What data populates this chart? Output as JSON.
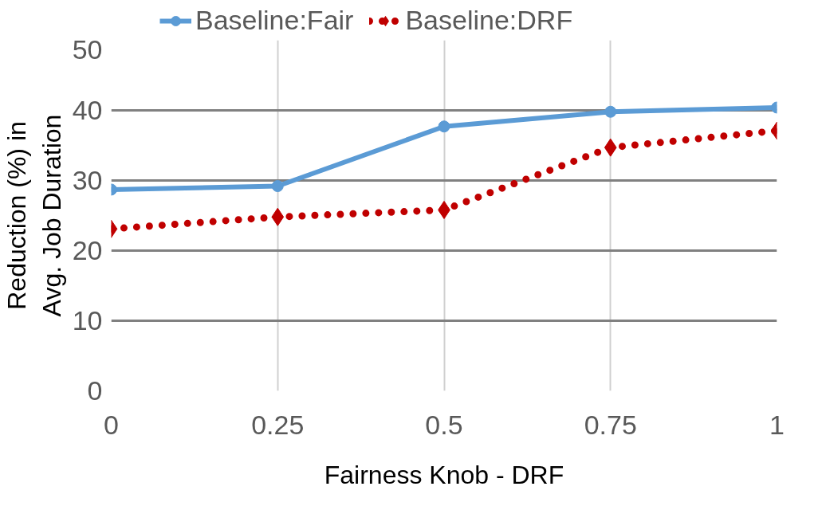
{
  "chart_data": {
    "type": "line",
    "xlabel": "Fairness Knob - DRF",
    "ylabel": "Reduction (%) in\nAvg. Job Duration",
    "x": [
      0,
      0.25,
      0.5,
      0.75,
      1
    ],
    "series": [
      {
        "name": "Baseline:Fair",
        "color": "#5b9bd5",
        "values": [
          28.7,
          29.2,
          37.7,
          39.8,
          40.4
        ],
        "marker": "circle",
        "line_style": "solid"
      },
      {
        "name": "Baseline:DRF",
        "color": "#c00000",
        "values": [
          23.1,
          24.8,
          25.8,
          34.7,
          37.1
        ],
        "marker": "diamond",
        "line_style": "dotted"
      }
    ],
    "xlim": [
      0,
      1
    ],
    "xticks": [
      0,
      0.25,
      0.5,
      0.75,
      1
    ],
    "ylim": [
      0,
      50
    ],
    "yticks": [
      0,
      10,
      20,
      30,
      40,
      50
    ],
    "grid": true,
    "legend": "top"
  }
}
